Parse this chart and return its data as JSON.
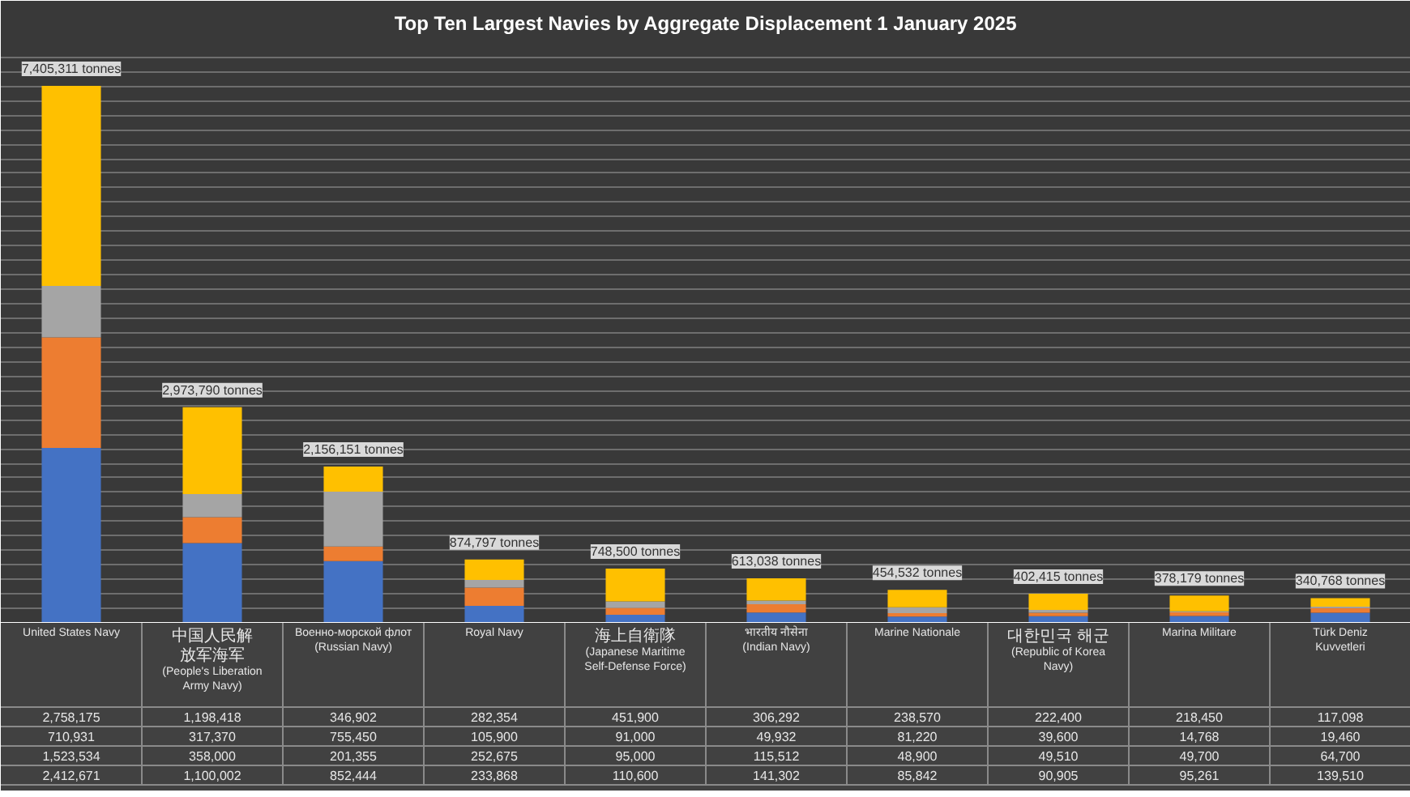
{
  "chart_data": {
    "type": "bar",
    "stacked": true,
    "title": "Top Ten Largest Navies by Aggregate Displacement 1 January 2025",
    "categories": [
      "United States Navy",
      "中国人民解放军海军 (People's Liberation Army Navy)",
      "Военно-морской флот (Russian Navy)",
      "Royal Navy",
      "海上自衛隊 (Japanese Maritime Self-Defense Force)",
      "भारतीय नौसेना (Indian Navy)",
      "Marine Nationale",
      "대한민국 해군 (Republic of Korea Navy)",
      "Marina Militare",
      "Türk Deniz Kuvvetleri"
    ],
    "series": [
      {
        "color": "#4472c4",
        "values": [
          2412671,
          1100002,
          852444,
          233868,
          110600,
          141302,
          85842,
          90905,
          95261,
          139510
        ],
        "value_labels": [
          "2,412,671",
          "1,100,002",
          "852,444",
          "233,868",
          "110,600",
          "141,302",
          "85,842",
          "90,905",
          "95,261",
          "139,510"
        ]
      },
      {
        "color": "#ed7d31",
        "values": [
          1523534,
          358000,
          201355,
          252675,
          95000,
          115512,
          48900,
          49510,
          49700,
          64700
        ],
        "value_labels": [
          "1,523,534",
          "358,000",
          "201,355",
          "252,675",
          "95,000",
          "115,512",
          "48,900",
          "49,510",
          "49,700",
          "64,700"
        ]
      },
      {
        "color": "#a5a5a5",
        "values": [
          710931,
          317370,
          755450,
          105900,
          91000,
          49932,
          81220,
          39600,
          14768,
          19460
        ],
        "value_labels": [
          "710,931",
          "317,370",
          "755,450",
          "105,900",
          "91,000",
          "49,932",
          "81,220",
          "39,600",
          "14,768",
          "19,460"
        ]
      },
      {
        "color": "#ffc000",
        "values": [
          2758175,
          1198418,
          346902,
          282354,
          451900,
          306292,
          238570,
          222400,
          218450,
          117098
        ],
        "value_labels": [
          "2,758,175",
          "1,198,418",
          "346,902",
          "282,354",
          "451,900",
          "306,292",
          "238,570",
          "222,400",
          "218,450",
          "117,098"
        ]
      }
    ],
    "totals": [
      "7,405,311 tonnes",
      "2,973,790 tonnes",
      "2,156,151 tonnes",
      "874,797 tonnes",
      "748,500 tonnes",
      "613,038 tonnes",
      "454,532 tonnes",
      "402,415 tonnes",
      "378,179 tonnes",
      "340,768 tonnes"
    ],
    "grid": "y",
    "tick_labels": "x"
  }
}
